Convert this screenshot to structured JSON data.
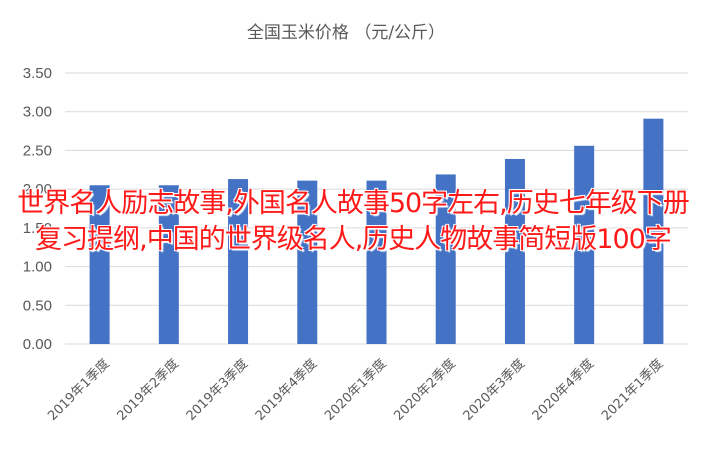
{
  "chart_data": {
    "type": "bar",
    "title": "全国玉米价格 （元/公斤）",
    "categories": [
      "2019年1季度",
      "2019年2季度",
      "2019年3季度",
      "2019年4季度",
      "2020年1季度",
      "2020年2季度",
      "2020年3季度",
      "2020年4季度",
      "2021年1季度"
    ],
    "values": [
      2.05,
      2.05,
      2.13,
      2.11,
      2.11,
      2.19,
      2.39,
      2.56,
      2.91
    ],
    "ylim": [
      0,
      3.5
    ],
    "yticks": [
      "0.00",
      "0.50",
      "1.00",
      "1.50",
      "2.00",
      "2.50",
      "3.00",
      "3.50"
    ],
    "grid": true,
    "bar_color": "#4472c4",
    "xlabel": "",
    "ylabel": ""
  },
  "overlay_text": "世界名人励志故事,外国名人故事50字左右,历史七年级下册复习提纲,中国的世界级名人,历史人物故事简短版100字",
  "colors": {
    "overlay_text": "#ff1a1a",
    "gridline": "#d9d9d9",
    "axis_text": "#595959"
  }
}
